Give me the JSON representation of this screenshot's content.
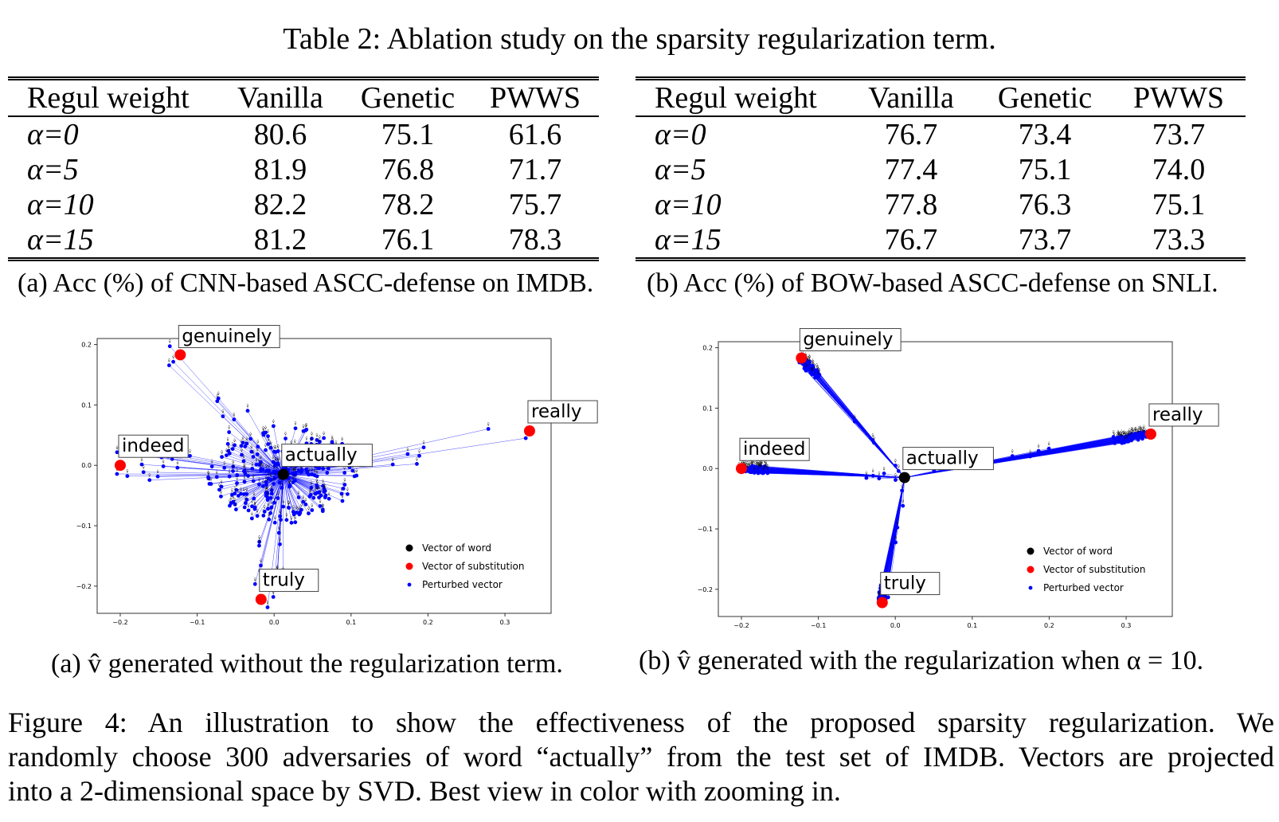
{
  "table_caption": "Table 2: Ablation study on the sparsity regularization term.",
  "tables": [
    {
      "headers": [
        "Regul weight",
        "Vanilla",
        "Genetic",
        "PWWS"
      ],
      "rows": [
        {
          "label": "α=0",
          "bold": false,
          "values": [
            "80.6",
            "75.1",
            "61.6"
          ]
        },
        {
          "label": "α=5",
          "bold": false,
          "values": [
            "81.9",
            "76.8",
            "71.7"
          ]
        },
        {
          "label": "α=10",
          "bold": true,
          "values": [
            "82.2",
            "78.2",
            "75.7"
          ]
        },
        {
          "label": "α=15",
          "bold": false,
          "values": [
            "81.2",
            "76.1",
            "78.3"
          ]
        }
      ],
      "caption": "(a) Acc (%) of CNN-based ASCC-defense on IMDB."
    },
    {
      "headers": [
        "Regul weight",
        "Vanilla",
        "Genetic",
        "PWWS"
      ],
      "rows": [
        {
          "label": "α=0",
          "bold": false,
          "values": [
            "76.7",
            "73.4",
            "73.7"
          ]
        },
        {
          "label": "α=5",
          "bold": false,
          "values": [
            "77.4",
            "75.1",
            "74.0"
          ]
        },
        {
          "label": "α=10",
          "bold": true,
          "values": [
            "77.8",
            "76.3",
            "75.1"
          ]
        },
        {
          "label": "α=15",
          "bold": false,
          "values": [
            "76.7",
            "73.7",
            "73.3"
          ]
        }
      ],
      "caption": "(b) Acc (%) of BOW-based ASCC-defense on SNLI."
    }
  ],
  "chart_data": [
    {
      "type": "scatter",
      "caption": "(a) v̂ generated without the regularization term.",
      "xlim": [
        -0.23,
        0.36
      ],
      "ylim": [
        -0.245,
        0.21
      ],
      "xticks": [
        -0.2,
        -0.1,
        0.0,
        0.1,
        0.2,
        0.3
      ],
      "yticks": [
        0.2,
        0.1,
        0.0,
        -0.1,
        -0.2
      ],
      "xtick_labels": [
        "−0.2",
        "−0.1",
        "0.0",
        "0.1",
        "0.2",
        "0.3"
      ],
      "ytick_labels": [
        "0.2",
        "0.1",
        "0.0",
        "−0.1",
        "−0.2"
      ],
      "center": {
        "word": "actually",
        "x": 0.012,
        "y": -0.015
      },
      "substitutions": [
        {
          "word": "genuinely",
          "x": -0.122,
          "y": 0.183
        },
        {
          "word": "really",
          "x": 0.332,
          "y": 0.057
        },
        {
          "word": "indeed",
          "x": -0.2,
          "y": 0.0
        },
        {
          "word": "truly",
          "x": -0.017,
          "y": -0.222
        }
      ],
      "spread": "wide",
      "legend": {
        "position": "lower-right",
        "items": [
          "Vector of word",
          "Vector of substitution",
          "Perturbed vector"
        ]
      },
      "colors": {
        "word": "#000000",
        "substitution": "#ff0000",
        "perturbed": "#0000ff"
      }
    },
    {
      "type": "scatter",
      "caption": "(b) v̂ generated with the regularization when α = 10.",
      "xlim": [
        -0.23,
        0.36
      ],
      "ylim": [
        -0.245,
        0.21
      ],
      "xticks": [
        -0.2,
        -0.1,
        0.0,
        0.1,
        0.2,
        0.3
      ],
      "yticks": [
        0.2,
        0.1,
        0.0,
        -0.1,
        -0.2
      ],
      "xtick_labels": [
        "−0.2",
        "−0.1",
        "0.0",
        "0.1",
        "0.2",
        "0.3"
      ],
      "ytick_labels": [
        "0.2",
        "0.1",
        "0.0",
        "−0.1",
        "−0.2"
      ],
      "center": {
        "word": "actually",
        "x": 0.012,
        "y": -0.015
      },
      "substitutions": [
        {
          "word": "genuinely",
          "x": -0.122,
          "y": 0.183
        },
        {
          "word": "really",
          "x": 0.332,
          "y": 0.057
        },
        {
          "word": "indeed",
          "x": -0.2,
          "y": 0.0
        },
        {
          "word": "truly",
          "x": -0.017,
          "y": -0.222
        }
      ],
      "spread": "tight",
      "legend": {
        "position": "lower-right",
        "items": [
          "Vector of word",
          "Vector of substitution",
          "Perturbed vector"
        ]
      },
      "colors": {
        "word": "#000000",
        "substitution": "#ff0000",
        "perturbed": "#0000ff"
      }
    }
  ],
  "figure_caption": {
    "line1": "Figure 4: An illustration to show the effectiveness of the proposed sparsity regularization. We",
    "line2": "randomly choose 300 adversaries of word “actually” from the test set of IMDB. Vectors are projected",
    "line3": "into a 2-dimensional space by SVD. Best view in color with zooming in."
  }
}
